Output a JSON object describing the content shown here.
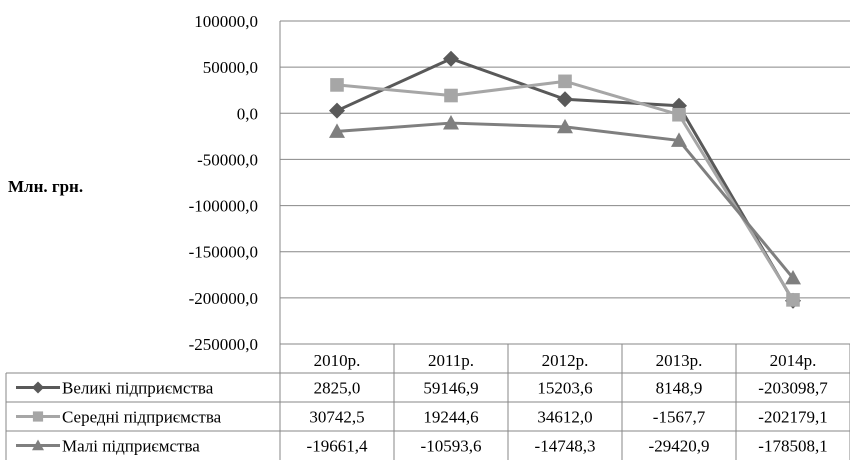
{
  "chart_data": {
    "type": "line",
    "title": "",
    "xlabel": "",
    "ylabel": "Млн. грн.",
    "ylim": [
      -250000,
      100000
    ],
    "yticks": [
      100000,
      50000,
      0,
      -50000,
      -100000,
      -150000,
      -200000,
      -250000
    ],
    "ytick_labels": [
      "100000,0",
      "50000,0",
      "0,0",
      "-50000,0",
      "-100000,0",
      "-150000,0",
      "-200000,0",
      "-250000,0"
    ],
    "categories": [
      "2010р.",
      "2011р.",
      "2012р.",
      "2013р.",
      "2014р."
    ],
    "grid": true,
    "legend": "data-table",
    "series": [
      {
        "name": "Великі підприємства",
        "values": [
          2825.0,
          59146.9,
          15203.6,
          8148.9,
          -203098.7
        ],
        "labels": [
          "2825,0",
          "59146,9",
          "15203,6",
          "8148,9",
          "-203098,7"
        ],
        "color": "#595959",
        "marker": "diamond"
      },
      {
        "name": "Середні підприємства",
        "values": [
          30742.5,
          19244.6,
          34612.0,
          -1567.7,
          -202179.1
        ],
        "labels": [
          "30742,5",
          "19244,6",
          "34612,0",
          "-1567,7",
          "-202179,1"
        ],
        "color": "#a6a6a6",
        "marker": "square"
      },
      {
        "name": "Малі підприємства",
        "values": [
          -19661.4,
          -10593.6,
          -14748.3,
          -29420.9,
          -178508.1
        ],
        "labels": [
          "-19661,4",
          "-10593,6",
          "-14748,3",
          "-29420,9",
          "-178508,1"
        ],
        "color": "#7f7f7f",
        "marker": "triangle"
      }
    ]
  }
}
